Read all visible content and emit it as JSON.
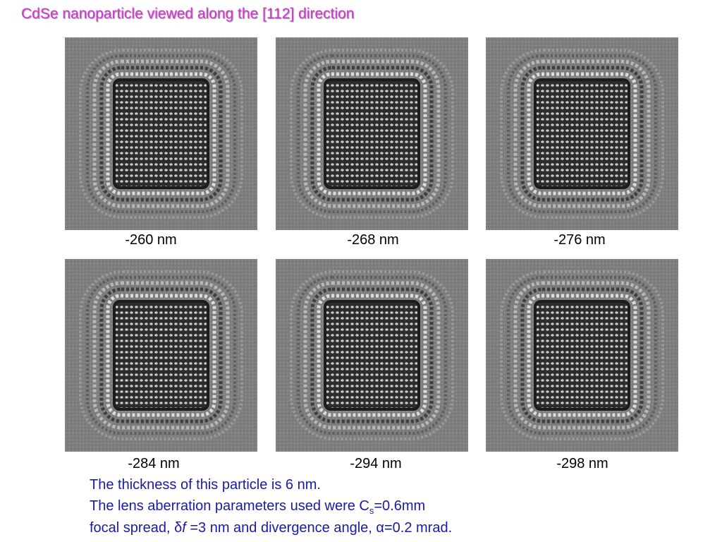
{
  "title": "CdSe nanoparticle viewed along the  [112] direction",
  "images": [
    {
      "caption": "-260 nm"
    },
    {
      "caption": "-268 nm"
    },
    {
      "caption": "-276 nm"
    },
    {
      "caption": "-284 nm"
    },
    {
      "caption": "-294 nm"
    },
    {
      "caption": "-298 nm"
    }
  ],
  "notes": {
    "line1": "The thickness of this particle is 6 nm.",
    "line2": {
      "text": "The lens aberration parameters used were C",
      "subscript": "s",
      "rest": "=0.6mm"
    },
    "line3": {
      "text": "focal spread, ",
      "delta": "δ",
      "f": "f",
      "mid": " =3 nm and divergence angle, ",
      "alpha": "α",
      "rest": "=0.2 mrad."
    }
  }
}
